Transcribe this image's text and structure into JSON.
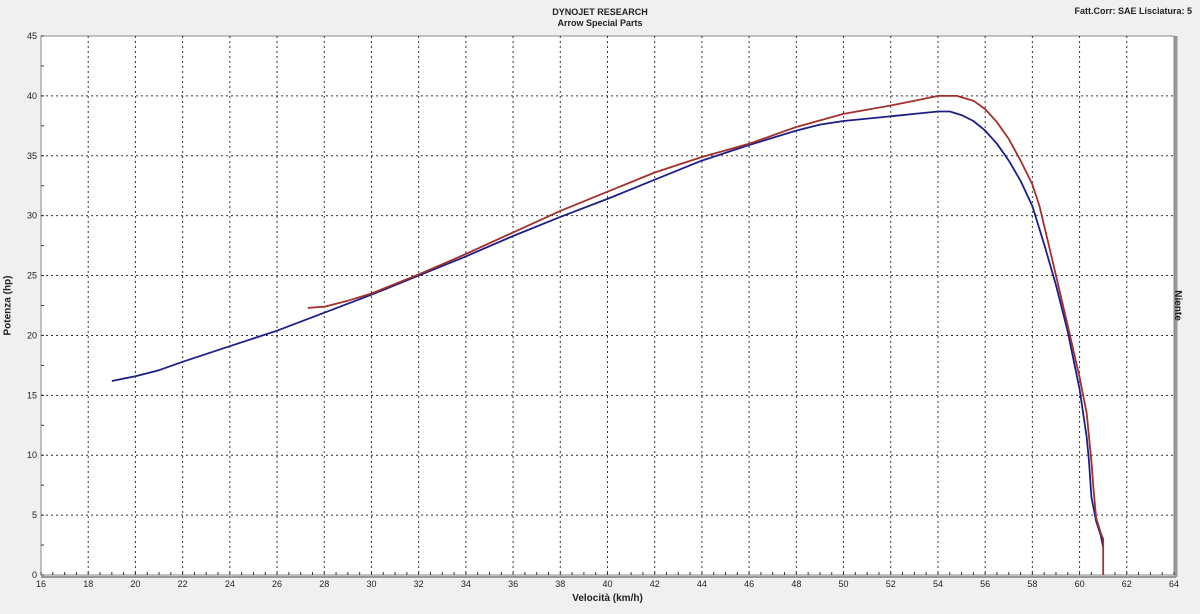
{
  "header": {
    "title": "DYNOJET RESEARCH",
    "subtitle": "Arrow Special Parts",
    "correction": "Fatt.Corr: SAE  Lisciatura: 5"
  },
  "right_label": "Niente",
  "chart_data": {
    "type": "line",
    "title": "DYNOJET RESEARCH",
    "subtitle": "Arrow Special Parts",
    "xlabel": "Velocità (km/h)",
    "ylabel": "Potenza (hp)",
    "xlim": [
      16,
      64
    ],
    "ylim": [
      0,
      45
    ],
    "xticks": [
      16,
      18,
      20,
      22,
      24,
      26,
      28,
      30,
      32,
      34,
      36,
      38,
      40,
      42,
      44,
      46,
      48,
      50,
      52,
      54,
      56,
      58,
      60,
      62,
      64
    ],
    "yticks": [
      0,
      5,
      10,
      15,
      20,
      25,
      30,
      35,
      40,
      45
    ],
    "grid": true,
    "series": [
      {
        "color": "#1c1f8a",
        "points": [
          [
            19,
            16.2
          ],
          [
            20,
            16.6
          ],
          [
            21,
            17.1
          ],
          [
            22,
            17.8
          ],
          [
            24,
            19.1
          ],
          [
            26,
            20.4
          ],
          [
            28,
            21.9
          ],
          [
            30,
            23.4
          ],
          [
            32,
            25.0
          ],
          [
            34,
            26.6
          ],
          [
            36,
            28.3
          ],
          [
            38,
            29.9
          ],
          [
            40,
            31.4
          ],
          [
            42,
            33.0
          ],
          [
            44,
            34.6
          ],
          [
            46,
            35.9
          ],
          [
            48,
            37.1
          ],
          [
            49,
            37.6
          ],
          [
            50,
            37.9
          ],
          [
            52,
            38.3
          ],
          [
            53,
            38.5
          ],
          [
            54,
            38.7
          ],
          [
            54.5,
            38.7
          ],
          [
            55,
            38.4
          ],
          [
            55.5,
            37.9
          ],
          [
            56,
            37.1
          ],
          [
            56.5,
            36.0
          ],
          [
            57,
            34.6
          ],
          [
            57.5,
            32.9
          ],
          [
            58,
            30.8
          ],
          [
            58.5,
            27.6
          ],
          [
            59,
            24.2
          ],
          [
            59.5,
            20.3
          ],
          [
            60,
            15.5
          ],
          [
            60.3,
            11.5
          ],
          [
            60.4,
            9.5
          ],
          [
            60.5,
            6.5
          ],
          [
            60.7,
            4.5
          ],
          [
            60.9,
            3.3
          ],
          [
            61,
            2.3
          ]
        ]
      },
      {
        "color": "#a3302b",
        "points": [
          [
            27.3,
            22.3
          ],
          [
            28,
            22.4
          ],
          [
            29,
            22.9
          ],
          [
            30,
            23.5
          ],
          [
            32,
            25.1
          ],
          [
            34,
            26.8
          ],
          [
            36,
            28.6
          ],
          [
            38,
            30.4
          ],
          [
            40,
            32.0
          ],
          [
            42,
            33.6
          ],
          [
            44,
            34.9
          ],
          [
            46,
            36.0
          ],
          [
            48,
            37.4
          ],
          [
            50,
            38.5
          ],
          [
            52,
            39.2
          ],
          [
            53,
            39.6
          ],
          [
            54,
            40.0
          ],
          [
            54.8,
            40.0
          ],
          [
            55.5,
            39.6
          ],
          [
            56,
            38.9
          ],
          [
            56.5,
            37.8
          ],
          [
            57,
            36.4
          ],
          [
            57.5,
            34.6
          ],
          [
            58,
            32.6
          ],
          [
            58.3,
            30.8
          ],
          [
            58.7,
            27.5
          ],
          [
            59,
            25.0
          ],
          [
            59.5,
            20.8
          ],
          [
            60,
            16.5
          ],
          [
            60.3,
            13.5
          ],
          [
            60.5,
            9.5
          ],
          [
            60.6,
            7.0
          ],
          [
            60.7,
            4.8
          ],
          [
            60.9,
            3.5
          ],
          [
            61,
            3.0
          ],
          [
            61,
            0
          ]
        ]
      }
    ]
  }
}
